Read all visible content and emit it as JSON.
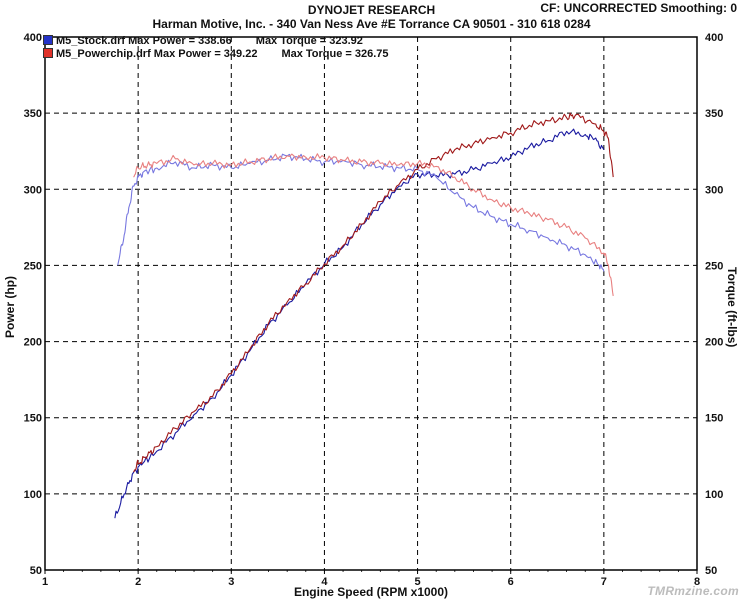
{
  "header": {
    "title": "DYNOJET RESEARCH",
    "subtitle": "Harman Motive, Inc. - 340 Van Ness Ave #E Torrance CA 90501 - 310 618 0284",
    "correction": "CF: UNCORRECTED  Smoothing: 0"
  },
  "watermark": "TMRmzine.com",
  "chart_data": {
    "type": "line",
    "xlabel": "Engine Speed (RPM x1000)",
    "ylabel_left": "Power (hp)",
    "ylabel_right": "Torque (ft-lbs)",
    "xlim": [
      1,
      8
    ],
    "ylim_left": [
      50,
      400
    ],
    "ylim_right": [
      50,
      400
    ],
    "x_ticks": [
      "1",
      "2",
      "3",
      "4",
      "5",
      "6",
      "7",
      "8"
    ],
    "y_ticks_left": [
      "50",
      "100",
      "150",
      "200",
      "250",
      "300",
      "350",
      "400"
    ],
    "y_ticks_right": [
      "50",
      "100",
      "150",
      "200",
      "250",
      "300",
      "350",
      "400"
    ],
    "grid": true,
    "legend": [
      {
        "label": "M5_Stock.drf Max Power = 338.66",
        "torque_label": "Max Torque = 323.92",
        "color": "#2432c8"
      },
      {
        "label": "M5_Powerchip.drf Max Power = 349.22",
        "torque_label": "Max Torque = 326.75",
        "color": "#e0322a"
      }
    ],
    "series": [
      {
        "legend": 0,
        "kind": "power",
        "color": "#1a1aa0",
        "x": [
          1.75,
          1.85,
          1.95,
          2.05,
          2.2,
          2.4,
          2.6,
          2.8,
          3.0,
          3.2,
          3.4,
          3.6,
          3.8,
          4.0,
          4.2,
          4.4,
          4.6,
          4.8,
          5.0,
          5.2,
          5.4,
          5.6,
          5.8,
          6.0,
          6.2,
          6.4,
          6.6,
          6.8,
          6.9,
          7.0
        ],
        "y": [
          84,
          100,
          114,
          120,
          128,
          140,
          152,
          163,
          178,
          194,
          211,
          224,
          238,
          251,
          262,
          277,
          290,
          302,
          310,
          309,
          310,
          313,
          317,
          321,
          328,
          332,
          338,
          336,
          333,
          326
        ]
      },
      {
        "legend": 0,
        "kind": "torque",
        "color": "#7878e0",
        "x": [
          1.78,
          1.85,
          1.9,
          1.95,
          2.0,
          2.05,
          2.2,
          2.4,
          2.6,
          2.8,
          3.0,
          3.2,
          3.4,
          3.6,
          3.8,
          4.0,
          4.2,
          4.4,
          4.6,
          4.8,
          5.0,
          5.2,
          5.4,
          5.6,
          5.8,
          6.0,
          6.2,
          6.4,
          6.6,
          6.8,
          6.95,
          7.0
        ],
        "y": [
          250,
          270,
          288,
          302,
          308,
          311,
          314,
          318,
          314,
          316,
          314,
          317,
          319,
          322,
          320,
          318,
          319,
          316,
          315,
          314,
          313,
          308,
          297,
          288,
          282,
          277,
          273,
          268,
          263,
          257,
          250,
          246
        ]
      },
      {
        "legend": 1,
        "kind": "power",
        "color": "#a01818",
        "x": [
          1.95,
          2.0,
          2.1,
          2.2,
          2.4,
          2.6,
          2.8,
          3.0,
          3.2,
          3.4,
          3.6,
          3.8,
          4.0,
          4.2,
          4.4,
          4.6,
          4.8,
          5.0,
          5.2,
          5.4,
          5.6,
          5.8,
          6.0,
          6.2,
          6.4,
          6.6,
          6.7,
          6.9,
          7.0,
          7.05,
          7.1
        ],
        "y": [
          115,
          120,
          125,
          131,
          143,
          154,
          164,
          179,
          195,
          212,
          226,
          238,
          251,
          263,
          277,
          292,
          303,
          313,
          320,
          326,
          330,
          334,
          337,
          342,
          345,
          347,
          349,
          343,
          338,
          333,
          308
        ]
      },
      {
        "legend": 1,
        "kind": "torque",
        "color": "#e88080",
        "x": [
          1.95,
          2.0,
          2.1,
          2.2,
          2.4,
          2.6,
          2.8,
          3.0,
          3.2,
          3.4,
          3.6,
          3.8,
          4.0,
          4.2,
          4.4,
          4.6,
          4.8,
          5.0,
          5.2,
          5.4,
          5.6,
          5.8,
          6.0,
          6.2,
          6.4,
          6.6,
          6.8,
          7.0,
          7.05,
          7.1
        ],
        "y": [
          308,
          314,
          316,
          317,
          320,
          316,
          317,
          316,
          318,
          320,
          322,
          321,
          321,
          319,
          318,
          317,
          316,
          317,
          315,
          308,
          300,
          293,
          288,
          284,
          280,
          275,
          268,
          258,
          250,
          230
        ]
      }
    ]
  }
}
